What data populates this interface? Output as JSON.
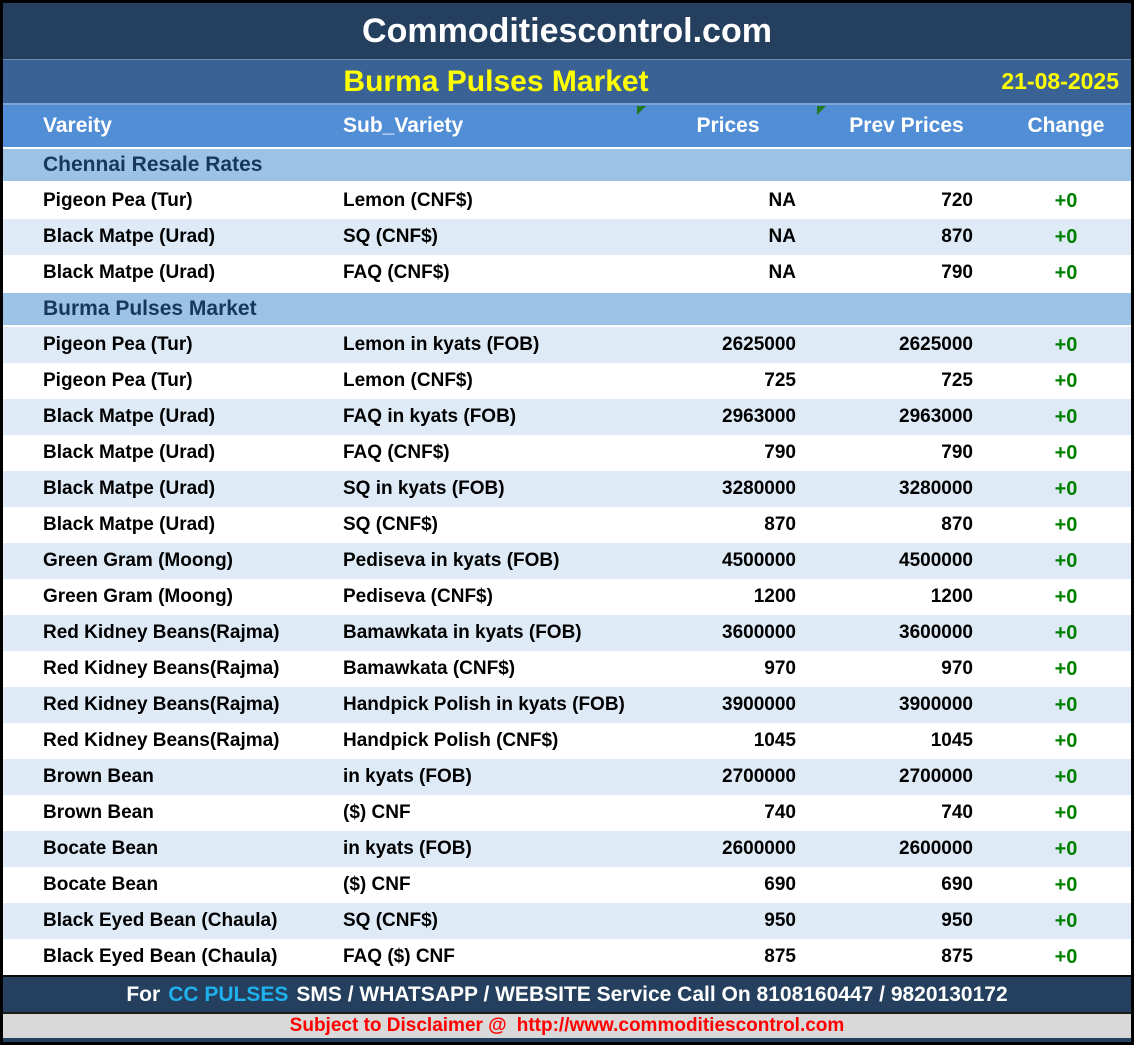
{
  "header": {
    "site_title": "Commoditiescontrol.com",
    "report_title": "Burma Pulses Market",
    "report_date": "21-08-2025"
  },
  "table": {
    "columns": [
      "Vareity",
      "Sub_Variety",
      "Prices",
      "Prev Prices",
      "Change"
    ],
    "sections": [
      {
        "title": "Chennai Resale Rates",
        "rows": [
          {
            "variety": "Pigeon Pea (Tur)",
            "sub_variety": "Lemon (CNF$)",
            "price": "NA",
            "prev_price": "720",
            "change": "+0"
          },
          {
            "variety": "Black Matpe (Urad)",
            "sub_variety": "SQ (CNF$)",
            "price": "NA",
            "prev_price": "870",
            "change": "+0"
          },
          {
            "variety": "Black Matpe (Urad)",
            "sub_variety": "FAQ (CNF$)",
            "price": "NA",
            "prev_price": "790",
            "change": "+0"
          }
        ]
      },
      {
        "title": "Burma Pulses Market",
        "rows": [
          {
            "variety": "Pigeon Pea (Tur)",
            "sub_variety": "Lemon in kyats (FOB)",
            "price": "2625000",
            "prev_price": "2625000",
            "change": "+0"
          },
          {
            "variety": "Pigeon Pea (Tur)",
            "sub_variety": "Lemon (CNF$)",
            "price": "725",
            "prev_price": "725",
            "change": "+0"
          },
          {
            "variety": "Black Matpe (Urad)",
            "sub_variety": "FAQ in kyats (FOB)",
            "price": "2963000",
            "prev_price": "2963000",
            "change": "+0"
          },
          {
            "variety": "Black Matpe (Urad)",
            "sub_variety": "FAQ (CNF$)",
            "price": "790",
            "prev_price": "790",
            "change": "+0"
          },
          {
            "variety": "Black Matpe (Urad)",
            "sub_variety": "SQ in kyats (FOB)",
            "price": "3280000",
            "prev_price": "3280000",
            "change": "+0"
          },
          {
            "variety": "Black Matpe (Urad)",
            "sub_variety": "SQ (CNF$)",
            "price": "870",
            "prev_price": "870",
            "change": "+0"
          },
          {
            "variety": "Green Gram (Moong)",
            "sub_variety": "Pediseva in kyats (FOB)",
            "price": "4500000",
            "prev_price": "4500000",
            "change": "+0"
          },
          {
            "variety": "Green Gram (Moong)",
            "sub_variety": "Pediseva (CNF$)",
            "price": "1200",
            "prev_price": "1200",
            "change": "+0"
          },
          {
            "variety": "Red Kidney Beans(Rajma)",
            "sub_variety": "Bamawkata in kyats (FOB)",
            "price": "3600000",
            "prev_price": "3600000",
            "change": "+0"
          },
          {
            "variety": "Red Kidney Beans(Rajma)",
            "sub_variety": "Bamawkata (CNF$)",
            "price": "970",
            "prev_price": "970",
            "change": "+0"
          },
          {
            "variety": "Red Kidney Beans(Rajma)",
            "sub_variety": "Handpick Polish in kyats (FOB)",
            "price": "3900000",
            "prev_price": "3900000",
            "change": "+0"
          },
          {
            "variety": "Red Kidney Beans(Rajma)",
            "sub_variety": "Handpick Polish (CNF$)",
            "price": "1045",
            "prev_price": "1045",
            "change": "+0"
          },
          {
            "variety": "Brown Bean",
            "sub_variety": "in kyats (FOB)",
            "price": "2700000",
            "prev_price": "2700000",
            "change": "+0"
          },
          {
            "variety": "Brown Bean",
            "sub_variety": "($) CNF",
            "price": "740",
            "prev_price": "740",
            "change": "+0"
          },
          {
            "variety": "Bocate Bean",
            "sub_variety": "in kyats (FOB)",
            "price": "2600000",
            "prev_price": "2600000",
            "change": "+0"
          },
          {
            "variety": "Bocate Bean",
            "sub_variety": "($) CNF",
            "price": "690",
            "prev_price": "690",
            "change": "+0"
          },
          {
            "variety": "Black Eyed Bean (Chaula)",
            "sub_variety": "SQ (CNF$)",
            "price": "950",
            "prev_price": "950",
            "change": "+0"
          },
          {
            "variety": "Black Eyed Bean (Chaula)",
            "sub_variety": "FAQ ($) CNF",
            "price": "875",
            "prev_price": "875",
            "change": "+0"
          }
        ]
      }
    ]
  },
  "footer": {
    "service_prefix": "For",
    "service_brand": "CC PULSES",
    "service_suffix": "SMS / WHATSAPP / WEBSITE Service Call On 8108160447 / 9820130172",
    "disclaimer_prefix": "Subject to Disclaimer @",
    "disclaimer_url": "http://www.commoditiescontrol.com"
  },
  "colors": {
    "navy_bar": "#24405E",
    "title_bar_blue": "#3A6294",
    "column_header_blue": "#528ED6",
    "section_band_blue": "#9CC2E5",
    "row_stripe_blue": "#DEEBF7",
    "change_green": "#008000",
    "brand_cyan": "#1FB0EE",
    "disclaimer_red": "#FF0000",
    "disclaimer_gray": "#D9D9D9",
    "date_yellow": "#FFFF00"
  }
}
